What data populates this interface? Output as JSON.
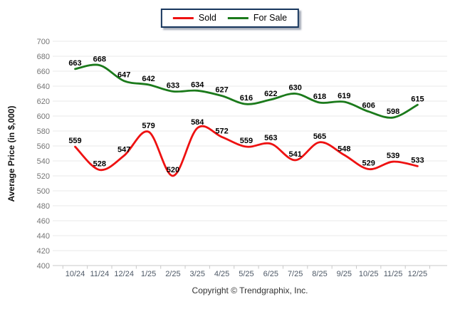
{
  "legend": {
    "items": [
      {
        "label": "Sold",
        "color": "#ee1111"
      },
      {
        "label": "For Sale",
        "color": "#1b7a1b"
      }
    ],
    "border_color": "#17365d"
  },
  "chart_data": {
    "type": "line",
    "title": "",
    "categories": [
      "10/24",
      "11/24",
      "12/24",
      "1/25",
      "2/25",
      "3/25",
      "4/25",
      "5/25",
      "6/25",
      "7/25",
      "8/25",
      "9/25",
      "10/25",
      "11/25",
      "12/25"
    ],
    "series": [
      {
        "name": "Sold",
        "color": "#ee1111",
        "values": [
          559,
          528,
          547,
          579,
          520,
          584,
          572,
          559,
          563,
          541,
          565,
          548,
          529,
          539,
          533
        ]
      },
      {
        "name": "For Sale",
        "color": "#1b7a1b",
        "values": [
          663,
          668,
          647,
          642,
          633,
          634,
          627,
          616,
          622,
          630,
          618,
          619,
          606,
          598,
          615
        ]
      }
    ],
    "xlabel": "",
    "ylabel": "Average Price (in $,000)",
    "ylim": [
      400,
      700
    ],
    "ytick_step": 20,
    "grid": true,
    "legend_position": "top",
    "data_labels": true
  },
  "footer": {
    "copyright": "Copyright © Trendgraphix, Inc."
  }
}
